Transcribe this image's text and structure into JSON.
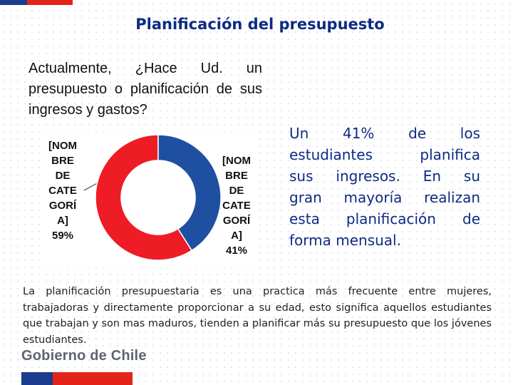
{
  "slide": {
    "title": "Planificación del presupuesto",
    "question": "Actualmente, ¿Hace Ud. un presupuesto o planificación de sus ingresos y gastos?",
    "summary_lines": [
      "Un 41% de los",
      "estudiantes planifica",
      "sus ingresos. En su",
      "gran mayoría realizan",
      "esta planificación de",
      "forma mensual."
    ],
    "footnote": "La planificación presupuestaria es una practica más frecuente entre mujeres, trabajadoras y directamente proporcionar a su edad, esto significa aquellos estudiantes que trabajan y son mas maduros, tienden a planificar más su presupuesto que los jóvenes estudiantes.",
    "logo_text": "Gobierno de Chile"
  },
  "chart_data": {
    "type": "pie",
    "variant": "donut",
    "title": "",
    "slices": [
      {
        "name": "[NOMBRE DE CATEGORÍA]",
        "value": 59,
        "label": "59%",
        "color": "#ee1c25",
        "label_lines": [
          "[NOM",
          "BRE",
          "DE",
          "CATE",
          "GORÍ",
          "A]",
          "59%"
        ]
      },
      {
        "name": "[NOMBRE DE CATEGORÍA]",
        "value": 41,
        "label": "41%",
        "color": "#1e4fa1",
        "label_lines": [
          "[NOM",
          "BRE",
          "DE",
          "CATE",
          "GORÍ",
          "A]",
          "41%"
        ]
      }
    ],
    "legend": "none"
  },
  "colors": {
    "title": "#0d2b83",
    "accent_blue": "#1a3c8c",
    "accent_red": "#e1251b"
  }
}
